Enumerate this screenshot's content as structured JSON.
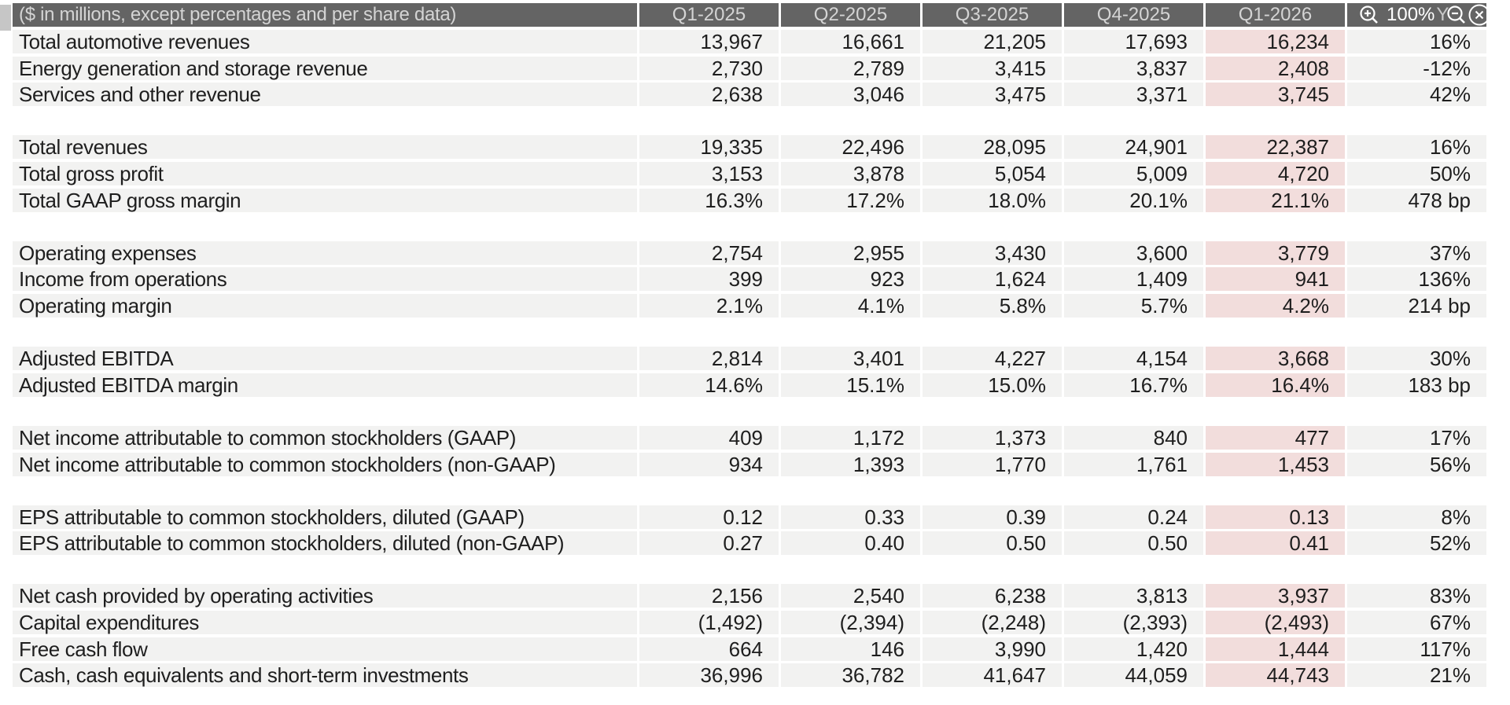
{
  "viewer": {
    "zoom_level": "100%",
    "zoom_in_icon": "magnifier-plus",
    "zoom_out_icon": "magnifier-minus",
    "close_icon": "circled-x"
  },
  "table": {
    "unit_note": "($ in millions, except percentages and per share data)",
    "quarter_columns": [
      "Q1-2025",
      "Q2-2025",
      "Q3-2025",
      "Q4-2025",
      "Q1-2026"
    ],
    "yoy_column_label": "YoY",
    "yoy_visible_remnant": "Y",
    "highlighted_column": "Q1-2026",
    "groups": [
      {
        "rows": [
          {
            "label": "Total automotive revenues",
            "values": [
              "13,967",
              "16,661",
              "21,205",
              "17,693",
              "16,234",
              "16%"
            ]
          },
          {
            "label": "Energy generation and storage revenue",
            "values": [
              "2,730",
              "2,789",
              "3,415",
              "3,837",
              "2,408",
              "-12%"
            ]
          },
          {
            "label": "Services and other revenue",
            "values": [
              "2,638",
              "3,046",
              "3,475",
              "3,371",
              "3,745",
              "42%"
            ]
          }
        ]
      },
      {
        "rows": [
          {
            "label": "Total revenues",
            "values": [
              "19,335",
              "22,496",
              "28,095",
              "24,901",
              "22,387",
              "16%"
            ]
          },
          {
            "label": "Total gross profit",
            "values": [
              "3,153",
              "3,878",
              "5,054",
              "5,009",
              "4,720",
              "50%"
            ]
          },
          {
            "label": "Total GAAP gross margin",
            "values": [
              "16.3%",
              "17.2%",
              "18.0%",
              "20.1%",
              "21.1%",
              "478 bp"
            ]
          }
        ]
      },
      {
        "rows": [
          {
            "label": "Operating expenses",
            "values": [
              "2,754",
              "2,955",
              "3,430",
              "3,600",
              "3,779",
              "37%"
            ]
          },
          {
            "label": "Income from operations",
            "values": [
              "399",
              "923",
              "1,624",
              "1,409",
              "941",
              "136%"
            ]
          },
          {
            "label": "Operating margin",
            "values": [
              "2.1%",
              "4.1%",
              "5.8%",
              "5.7%",
              "4.2%",
              "214 bp"
            ]
          }
        ]
      },
      {
        "rows": [
          {
            "label": "Adjusted EBITDA",
            "values": [
              "2,814",
              "3,401",
              "4,227",
              "4,154",
              "3,668",
              "30%"
            ]
          },
          {
            "label": "Adjusted EBITDA margin",
            "values": [
              "14.6%",
              "15.1%",
              "15.0%",
              "16.7%",
              "16.4%",
              "183 bp"
            ]
          }
        ]
      },
      {
        "rows": [
          {
            "label": "Net income attributable to common stockholders (GAAP)",
            "values": [
              "409",
              "1,172",
              "1,373",
              "840",
              "477",
              "17%"
            ]
          },
          {
            "label": "Net income attributable to common stockholders (non-GAAP)",
            "values": [
              "934",
              "1,393",
              "1,770",
              "1,761",
              "1,453",
              "56%"
            ]
          }
        ]
      },
      {
        "rows": [
          {
            "label": "EPS attributable to common stockholders, diluted (GAAP)",
            "values": [
              "0.12",
              "0.33",
              "0.39",
              "0.24",
              "0.13",
              "8%"
            ]
          },
          {
            "label": "EPS attributable to common stockholders, diluted (non-GAAP)",
            "values": [
              "0.27",
              "0.40",
              "0.50",
              "0.50",
              "0.41",
              "52%"
            ]
          }
        ]
      },
      {
        "rows": [
          {
            "label": "Net cash provided by operating activities",
            "values": [
              "2,156",
              "2,540",
              "6,238",
              "3,813",
              "3,937",
              "83%"
            ]
          },
          {
            "label": "Capital expenditures",
            "values": [
              "(1,492)",
              "(2,394)",
              "(2,248)",
              "(2,393)",
              "(2,493)",
              "67%"
            ]
          },
          {
            "label": "Free cash flow",
            "values": [
              "664",
              "146",
              "3,990",
              "1,420",
              "1,444",
              "117%"
            ]
          },
          {
            "label": "Cash, cash equivalents and short-term investments",
            "values": [
              "36,996",
              "36,782",
              "41,647",
              "44,059",
              "44,743",
              "21%"
            ]
          }
        ]
      }
    ]
  },
  "colors": {
    "header_bg": "#646464",
    "header_text": "#d4d4d4",
    "row_band": "#f2f2f1",
    "highlight_pink": "#f2dddc",
    "text": "#1e1e1e"
  }
}
